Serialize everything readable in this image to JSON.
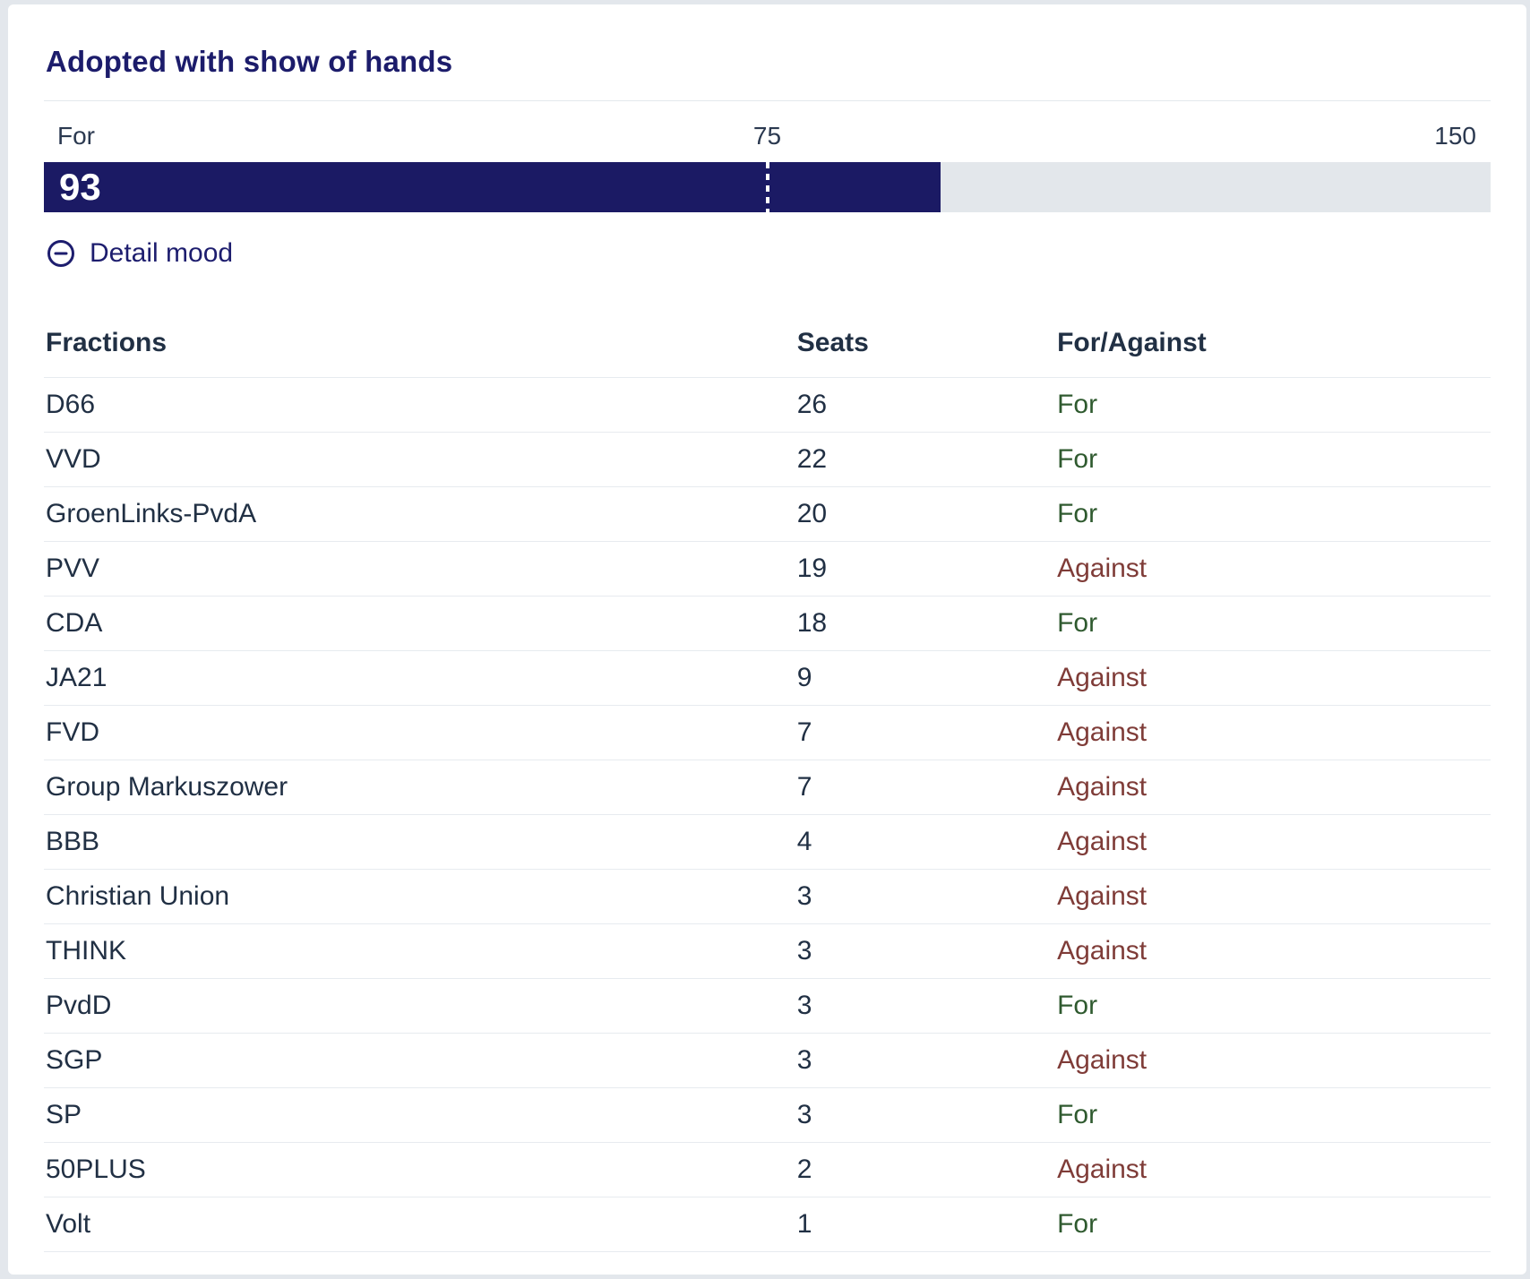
{
  "header": {
    "title": "Adopted with show of hands"
  },
  "vote_bar": {
    "label": "For",
    "value": 93,
    "majority_mark": 75,
    "total": 150
  },
  "detail_toggle": {
    "label": "Detail mood",
    "state": "expanded",
    "icon": "minus-circle-icon"
  },
  "table": {
    "columns": {
      "fraction": "Fractions",
      "seats": "Seats",
      "vote": "For/Against"
    },
    "rows": [
      {
        "fraction": "D66",
        "seats": 26,
        "vote": "For"
      },
      {
        "fraction": "VVD",
        "seats": 22,
        "vote": "For"
      },
      {
        "fraction": "GroenLinks-PvdA",
        "seats": 20,
        "vote": "For"
      },
      {
        "fraction": "PVV",
        "seats": 19,
        "vote": "Against"
      },
      {
        "fraction": "CDA",
        "seats": 18,
        "vote": "For"
      },
      {
        "fraction": "JA21",
        "seats": 9,
        "vote": "Against"
      },
      {
        "fraction": "FVD",
        "seats": 7,
        "vote": "Against"
      },
      {
        "fraction": "Group Markuszower",
        "seats": 7,
        "vote": "Against"
      },
      {
        "fraction": "BBB",
        "seats": 4,
        "vote": "Against"
      },
      {
        "fraction": "Christian Union",
        "seats": 3,
        "vote": "Against"
      },
      {
        "fraction": "THINK",
        "seats": 3,
        "vote": "Against"
      },
      {
        "fraction": "PvdD",
        "seats": 3,
        "vote": "For"
      },
      {
        "fraction": "SGP",
        "seats": 3,
        "vote": "Against"
      },
      {
        "fraction": "SP",
        "seats": 3,
        "vote": "For"
      },
      {
        "fraction": "50PLUS",
        "seats": 2,
        "vote": "Against"
      },
      {
        "fraction": "Volt",
        "seats": 1,
        "vote": "For"
      }
    ]
  },
  "colors": {
    "accent_navy": "#1c1c6b",
    "bar_fill": "#1b1a64",
    "bar_track": "#e3e7eb",
    "for_green": "#2f5a2f",
    "against_maroon": "#7f3c38",
    "text_dark": "#213044",
    "page_background": "#e3e7ec"
  },
  "chart_data": {
    "type": "bar",
    "orientation": "horizontal",
    "title": "Adopted with show of hands",
    "categories": [
      "For"
    ],
    "values": [
      93
    ],
    "xlim": [
      0,
      150
    ],
    "reference_line": 75,
    "tick_labels": [
      "75",
      "150"
    ],
    "grid": false,
    "legend_position": "none"
  }
}
